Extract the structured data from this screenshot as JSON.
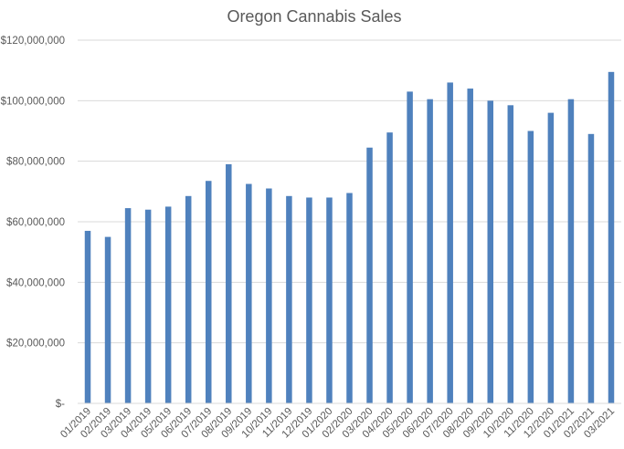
{
  "chart_data": {
    "type": "bar",
    "title": "Oregon Cannabis Sales",
    "xlabel": "",
    "ylabel": "",
    "ylim": [
      0,
      120000000
    ],
    "yticks": [
      0,
      20000000,
      40000000,
      60000000,
      80000000,
      100000000,
      120000000
    ],
    "ytick_labels": [
      "$-",
      "$20,000,000",
      "$40,000,000",
      "$60,000,000",
      "$80,000,000",
      "$100,000,000",
      "$120,000,000"
    ],
    "grid": true,
    "legend": "none",
    "categories": [
      "01/2019",
      "02/2019",
      "03/2019",
      "04/2019",
      "05/2019",
      "06/2019",
      "07/2019",
      "08/2019",
      "09/2019",
      "10/2019",
      "11/2019",
      "12/2019",
      "01/2020",
      "02/2020",
      "03/2020",
      "04/2020",
      "05/2020",
      "06/2020",
      "07/2020",
      "08/2020",
      "09/2020",
      "10/2020",
      "11/2020",
      "12/2020",
      "01/2021",
      "02/2021",
      "03/2021"
    ],
    "series": [
      {
        "name": "Sales",
        "color": "#4f81bd",
        "values": [
          57000000,
          55000000,
          64500000,
          64000000,
          65000000,
          68500000,
          73500000,
          79000000,
          72500000,
          71000000,
          68500000,
          68000000,
          68000000,
          69500000,
          84500000,
          89500000,
          103000000,
          100500000,
          106000000,
          104000000,
          100000000,
          98500000,
          90000000,
          96000000,
          100500000,
          89000000,
          109500000
        ]
      }
    ]
  }
}
